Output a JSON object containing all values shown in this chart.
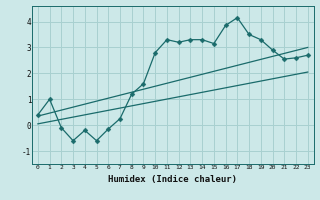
{
  "xlabel": "Humidex (Indice chaleur)",
  "background_color": "#cce8e8",
  "grid_color": "#a8d0d0",
  "line_color": "#1a6b6b",
  "xlim": [
    -0.5,
    23.5
  ],
  "ylim": [
    -1.5,
    4.6
  ],
  "yticks": [
    -1,
    0,
    1,
    2,
    3,
    4
  ],
  "xticks": [
    0,
    1,
    2,
    3,
    4,
    5,
    6,
    7,
    8,
    9,
    10,
    11,
    12,
    13,
    14,
    15,
    16,
    17,
    18,
    19,
    20,
    21,
    22,
    23
  ],
  "main_x": [
    0,
    1,
    2,
    3,
    4,
    5,
    6,
    7,
    8,
    9,
    10,
    11,
    12,
    13,
    14,
    15,
    16,
    17,
    18,
    19,
    20,
    21,
    22,
    23
  ],
  "main_y": [
    0.4,
    1.0,
    -0.1,
    -0.6,
    -0.2,
    -0.6,
    -0.15,
    0.25,
    1.2,
    1.6,
    2.8,
    3.3,
    3.2,
    3.3,
    3.3,
    3.15,
    3.85,
    4.15,
    3.5,
    3.3,
    2.9,
    2.55,
    2.6,
    2.7
  ],
  "upper_line_x": [
    0,
    23
  ],
  "upper_line_y": [
    0.35,
    3.0
  ],
  "lower_line_x": [
    0,
    23
  ],
  "lower_line_y": [
    0.05,
    2.05
  ],
  "markersize": 2.5,
  "linewidth": 0.9
}
